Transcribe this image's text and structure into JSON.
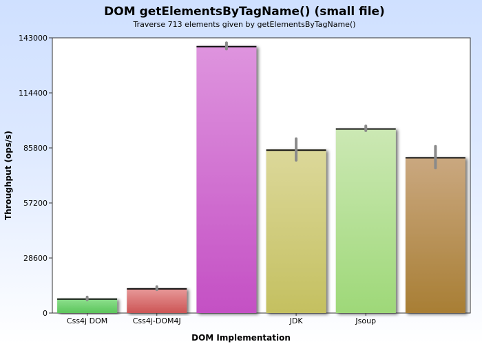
{
  "chart_data": {
    "type": "bar",
    "title": "DOM getElementsByTagName() (small file)",
    "subtitle": "Traverse 713 elements given by getElementsByTagName()",
    "xlabel": "DOM Implementation",
    "ylabel": "Throughput (ops/s)",
    "ylim": [
      0,
      143000
    ],
    "yticks": [
      0,
      28600,
      57200,
      85800,
      114400,
      143000
    ],
    "ytick_labels": [
      "0",
      "28600",
      "57200",
      "85800",
      "114400",
      "143000"
    ],
    "categories": [
      "Css4j DOM",
      "Css4j-DOM4J",
      "",
      "JDK",
      "Jsoup",
      ""
    ],
    "values": [
      7600,
      12900,
      138800,
      85000,
      96000,
      81000
    ],
    "errors": [
      700,
      800,
      1600,
      5600,
      1200,
      5600
    ],
    "colors": [
      "#5cc55c",
      "#cc5555",
      "#c450c4",
      "#c4c060",
      "#9ed878",
      "#a87e34"
    ],
    "colors_light": [
      "#8fe08f",
      "#e89a9a",
      "#de94de",
      "#dcd89a",
      "#cce8b4",
      "#caa880"
    ],
    "grid": false,
    "legend": "none"
  }
}
